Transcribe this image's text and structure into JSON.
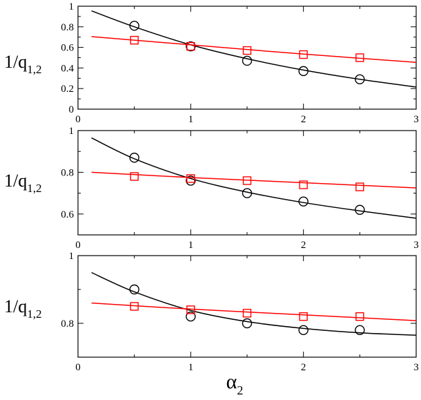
{
  "chart_data": [
    {
      "type": "scatter",
      "panel": "top",
      "ylabel": {
        "main": "1/q",
        "sub": "1,2"
      },
      "xlim": [
        0,
        3
      ],
      "ylim": [
        0,
        1
      ],
      "xticks": [
        0,
        1,
        2,
        3
      ],
      "yticks": [
        0,
        0.2,
        0.4,
        0.6,
        0.8,
        1
      ],
      "ytick_labels": [
        "0",
        "0.2",
        "0.4",
        "0.6",
        "0.8",
        "1"
      ],
      "series": [
        {
          "marker": "circle",
          "color": "#000000",
          "points": [
            [
              0.5,
              0.81
            ],
            [
              1.0,
              0.61
            ],
            [
              1.5,
              0.47
            ],
            [
              2.0,
              0.37
            ],
            [
              2.5,
              0.29
            ]
          ],
          "fit": [
            [
              0.12,
              0.955
            ],
            [
              0.5,
              0.8
            ],
            [
              1.0,
              0.625
            ],
            [
              1.5,
              0.49
            ],
            [
              2.0,
              0.38
            ],
            [
              2.5,
              0.29
            ],
            [
              3.0,
              0.215
            ]
          ]
        },
        {
          "marker": "square",
          "color": "#ff0000",
          "points": [
            [
              0.5,
              0.67
            ],
            [
              1.0,
              0.61
            ],
            [
              1.5,
              0.57
            ],
            [
              2.0,
              0.53
            ],
            [
              2.5,
              0.5
            ]
          ],
          "fit": [
            [
              0.12,
              0.705
            ],
            [
              1.0,
              0.625
            ],
            [
              2.0,
              0.535
            ],
            [
              3.0,
              0.455
            ]
          ]
        }
      ]
    },
    {
      "type": "scatter",
      "panel": "middle",
      "ylabel": {
        "main": "1/q",
        "sub": "1,2"
      },
      "xlim": [
        0,
        3
      ],
      "ylim": [
        0.5,
        1
      ],
      "xticks": [
        0,
        1,
        2,
        3
      ],
      "yticks": [
        0.6,
        0.8,
        1
      ],
      "ytick_labels": [
        "0.6",
        "0.8",
        "1"
      ],
      "series": [
        {
          "marker": "circle",
          "color": "#000000",
          "points": [
            [
              0.5,
              0.87
            ],
            [
              1.0,
              0.76
            ],
            [
              1.5,
              0.7
            ],
            [
              2.0,
              0.66
            ],
            [
              2.5,
              0.62
            ]
          ],
          "fit": [
            [
              0.12,
              0.965
            ],
            [
              0.5,
              0.865
            ],
            [
              1.0,
              0.77
            ],
            [
              1.5,
              0.705
            ],
            [
              2.0,
              0.655
            ],
            [
              2.5,
              0.615
            ],
            [
              3.0,
              0.58
            ]
          ]
        },
        {
          "marker": "square",
          "color": "#ff0000",
          "points": [
            [
              0.5,
              0.78
            ],
            [
              1.0,
              0.77
            ],
            [
              1.5,
              0.76
            ],
            [
              2.0,
              0.74
            ],
            [
              2.5,
              0.73
            ]
          ],
          "fit": [
            [
              0.12,
              0.8
            ],
            [
              1.0,
              0.775
            ],
            [
              2.0,
              0.75
            ],
            [
              3.0,
              0.725
            ]
          ]
        }
      ]
    },
    {
      "type": "scatter",
      "panel": "bottom",
      "ylabel": {
        "main": "1/q",
        "sub": "1,2"
      },
      "xlabel": {
        "main": "α",
        "sub": "2"
      },
      "xlim": [
        0,
        3
      ],
      "ylim": [
        0.7,
        1
      ],
      "xticks": [
        0,
        1,
        2,
        3
      ],
      "yticks": [
        0.8,
        1
      ],
      "ytick_labels": [
        "0.8",
        "1"
      ],
      "series": [
        {
          "marker": "circle",
          "color": "#000000",
          "points": [
            [
              0.5,
              0.9
            ],
            [
              1.0,
              0.82
            ],
            [
              1.5,
              0.8
            ],
            [
              2.0,
              0.78
            ],
            [
              2.5,
              0.78
            ]
          ],
          "fit": [
            [
              0.12,
              0.95
            ],
            [
              0.5,
              0.893
            ],
            [
              1.0,
              0.838
            ],
            [
              1.5,
              0.805
            ],
            [
              2.0,
              0.785
            ],
            [
              2.5,
              0.772
            ],
            [
              3.0,
              0.765
            ]
          ]
        },
        {
          "marker": "square",
          "color": "#ff0000",
          "points": [
            [
              0.5,
              0.85
            ],
            [
              1.0,
              0.84
            ],
            [
              1.5,
              0.83
            ],
            [
              2.0,
              0.82
            ],
            [
              2.5,
              0.82
            ]
          ],
          "fit": [
            [
              0.12,
              0.86
            ],
            [
              1.0,
              0.842
            ],
            [
              2.0,
              0.825
            ],
            [
              3.0,
              0.808
            ]
          ]
        }
      ]
    }
  ]
}
